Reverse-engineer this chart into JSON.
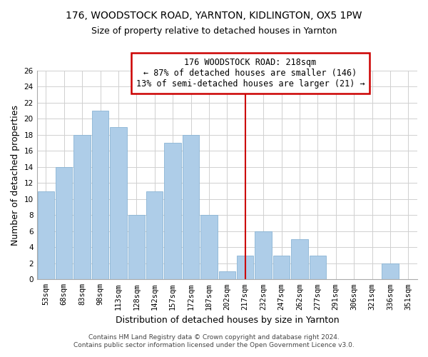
{
  "title": "176, WOODSTOCK ROAD, YARNTON, KIDLINGTON, OX5 1PW",
  "subtitle": "Size of property relative to detached houses in Yarnton",
  "xlabel": "Distribution of detached houses by size in Yarnton",
  "ylabel": "Number of detached properties",
  "bar_labels": [
    "53sqm",
    "68sqm",
    "83sqm",
    "98sqm",
    "113sqm",
    "128sqm",
    "142sqm",
    "157sqm",
    "172sqm",
    "187sqm",
    "202sqm",
    "217sqm",
    "232sqm",
    "247sqm",
    "262sqm",
    "277sqm",
    "291sqm",
    "306sqm",
    "321sqm",
    "336sqm",
    "351sqm"
  ],
  "bar_values": [
    11,
    14,
    18,
    21,
    19,
    8,
    11,
    17,
    18,
    8,
    1,
    3,
    6,
    3,
    5,
    3,
    0,
    0,
    0,
    2,
    0
  ],
  "bar_color": "#aecde8",
  "bar_edge_color": "#8ab4d4",
  "reference_line_x_label": "217sqm",
  "reference_line_color": "#cc0000",
  "annotation_title": "176 WOODSTOCK ROAD: 218sqm",
  "annotation_line1": "← 87% of detached houses are smaller (146)",
  "annotation_line2": "13% of semi-detached houses are larger (21) →",
  "annotation_box_color": "#ffffff",
  "annotation_box_edge_color": "#cc0000",
  "ylim": [
    0,
    26
  ],
  "yticks": [
    0,
    2,
    4,
    6,
    8,
    10,
    12,
    14,
    16,
    18,
    20,
    22,
    24,
    26
  ],
  "footer_line1": "Contains HM Land Registry data © Crown copyright and database right 2024.",
  "footer_line2": "Contains public sector information licensed under the Open Government Licence v3.0.",
  "bg_color": "#ffffff",
  "grid_color": "#d0d0d0",
  "title_fontsize": 10,
  "subtitle_fontsize": 9,
  "axis_label_fontsize": 9,
  "tick_fontsize": 7.5,
  "footer_fontsize": 6.5,
  "annotation_fontsize": 8.5
}
